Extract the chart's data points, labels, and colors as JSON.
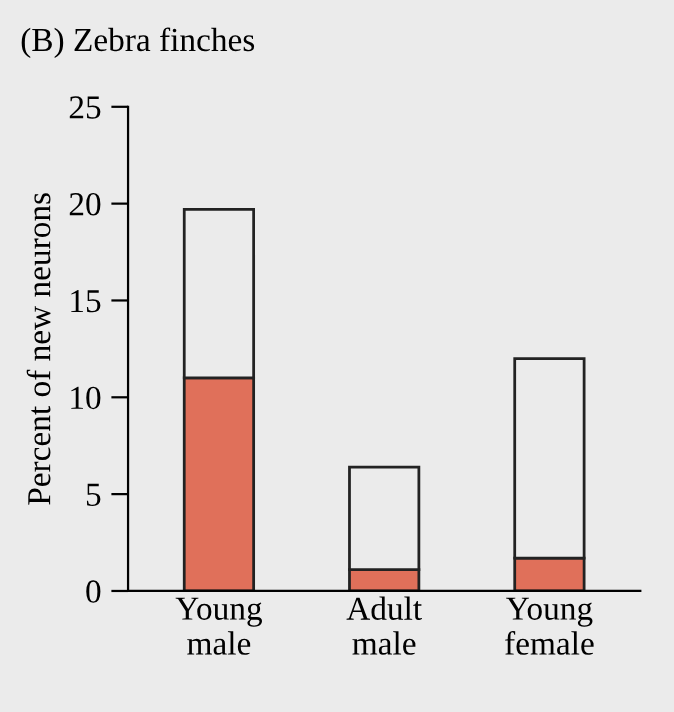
{
  "chart_data": {
    "type": "bar",
    "title": "(B) Zebra finches",
    "ylabel": "Percent of new neurons",
    "categories": [
      "Young\nmale",
      "Adult\nmale",
      "Young\nfemale"
    ],
    "stacked": true,
    "series": [
      {
        "color": "#e0705a",
        "values": [
          11.0,
          1.1,
          1.7
        ]
      },
      {
        "color": "#ebebeb",
        "values": [
          8.7,
          5.3,
          10.3
        ]
      }
    ],
    "ylim": [
      0,
      25
    ],
    "yticks": [
      0,
      5,
      10,
      15,
      20,
      25
    ],
    "grid": false,
    "legend": false
  }
}
